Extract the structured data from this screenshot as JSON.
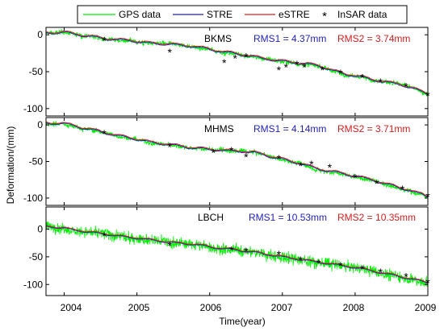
{
  "chart_data": {
    "type": "line",
    "xlabel": "Time(year)",
    "ylabel": "Deformation/(mm)",
    "xlim": [
      2003.75,
      2009.0
    ],
    "xticks": [
      "2004",
      "2005",
      "2006",
      "2007",
      "2008",
      "2009"
    ],
    "legend": {
      "placement": "top",
      "entries": [
        {
          "label": "GPS data",
          "color": "#00ee00",
          "marker": "line"
        },
        {
          "label": "STRE",
          "color": "#1f1fbf",
          "marker": "line"
        },
        {
          "label": "eSTRE",
          "color": "#d62020",
          "marker": "line"
        },
        {
          "label": "InSAR data",
          "color": "#000000",
          "marker": "*"
        }
      ]
    },
    "panels": [
      {
        "station": "BKMS",
        "rms1": "RMS1 = 4.37mm",
        "rms2": "RMS2 = 3.74mm",
        "ylim": [
          -110,
          10
        ],
        "yticks": [
          0,
          -50,
          -100
        ],
        "gps_noise": 4,
        "trend": [
          [
            2003.75,
            2
          ],
          [
            2004.0,
            3
          ],
          [
            2004.3,
            -2
          ],
          [
            2004.6,
            -6
          ],
          [
            2004.9,
            -8
          ],
          [
            2005.2,
            -12
          ],
          [
            2005.5,
            -14
          ],
          [
            2005.8,
            -16
          ],
          [
            2006.0,
            -20
          ],
          [
            2006.3,
            -25
          ],
          [
            2006.6,
            -30
          ],
          [
            2006.9,
            -35
          ],
          [
            2007.2,
            -38
          ],
          [
            2007.5,
            -42
          ],
          [
            2007.8,
            -52
          ],
          [
            2008.1,
            -58
          ],
          [
            2008.4,
            -64
          ],
          [
            2008.7,
            -70
          ],
          [
            2009.0,
            -80
          ]
        ],
        "insar": [
          [
            2004.55,
            -8
          ],
          [
            2005.45,
            -24
          ],
          [
            2006.2,
            -38
          ],
          [
            2006.35,
            -32
          ],
          [
            2006.5,
            -30
          ],
          [
            2006.95,
            -48
          ],
          [
            2007.05,
            -44
          ],
          [
            2007.2,
            -40
          ],
          [
            2007.3,
            -44
          ],
          [
            2007.55,
            -48
          ],
          [
            2007.8,
            -52
          ],
          [
            2008.1,
            -58
          ],
          [
            2008.35,
            -64
          ],
          [
            2008.7,
            -70
          ],
          [
            2009.0,
            -82
          ]
        ]
      },
      {
        "station": "MHMS",
        "rms1": "RMS1 = 4.14mm",
        "rms2": "RMS2 = 3.71mm",
        "ylim": [
          -110,
          10
        ],
        "yticks": [
          0,
          -50,
          -100
        ],
        "gps_noise": 4,
        "trend": [
          [
            2003.75,
            2
          ],
          [
            2004.0,
            2
          ],
          [
            2004.3,
            -5
          ],
          [
            2004.6,
            -12
          ],
          [
            2004.9,
            -18
          ],
          [
            2005.2,
            -24
          ],
          [
            2005.5,
            -28
          ],
          [
            2005.8,
            -32
          ],
          [
            2006.0,
            -34
          ],
          [
            2006.3,
            -36
          ],
          [
            2006.6,
            -38
          ],
          [
            2006.9,
            -45
          ],
          [
            2007.2,
            -52
          ],
          [
            2007.5,
            -60
          ],
          [
            2007.8,
            -66
          ],
          [
            2008.1,
            -72
          ],
          [
            2008.4,
            -80
          ],
          [
            2008.7,
            -88
          ],
          [
            2009.0,
            -98
          ]
        ],
        "insar": [
          [
            2004.55,
            -12
          ],
          [
            2005.45,
            -30
          ],
          [
            2006.05,
            -38
          ],
          [
            2006.3,
            -35
          ],
          [
            2006.5,
            -44
          ],
          [
            2006.95,
            -46
          ],
          [
            2007.25,
            -56
          ],
          [
            2007.4,
            -54
          ],
          [
            2007.65,
            -58
          ],
          [
            2008.0,
            -72
          ],
          [
            2008.3,
            -80
          ],
          [
            2008.65,
            -88
          ],
          [
            2009.0,
            -98
          ]
        ]
      },
      {
        "station": "LBCH",
        "rms1": "RMS1 = 10.53mm",
        "rms2": "RMS2 = 10.35mm",
        "ylim": [
          -120,
          40
        ],
        "yticks": [
          0,
          -50,
          -100
        ],
        "gps_noise": 13,
        "trend": [
          [
            2003.75,
            5
          ],
          [
            2004.0,
            2
          ],
          [
            2004.3,
            -5
          ],
          [
            2004.6,
            -10
          ],
          [
            2004.9,
            -15
          ],
          [
            2005.2,
            -20
          ],
          [
            2005.5,
            -25
          ],
          [
            2005.8,
            -28
          ],
          [
            2006.0,
            -32
          ],
          [
            2006.3,
            -37
          ],
          [
            2006.6,
            -42
          ],
          [
            2006.9,
            -48
          ],
          [
            2007.2,
            -54
          ],
          [
            2007.5,
            -60
          ],
          [
            2007.8,
            -66
          ],
          [
            2008.1,
            -72
          ],
          [
            2008.4,
            -80
          ],
          [
            2008.7,
            -88
          ],
          [
            2009.0,
            -97
          ]
        ],
        "insar": [
          [
            2004.55,
            -12
          ],
          [
            2005.45,
            -30
          ],
          [
            2006.3,
            -38
          ],
          [
            2006.5,
            -40
          ],
          [
            2006.95,
            -46
          ],
          [
            2007.25,
            -56
          ],
          [
            2007.5,
            -62
          ],
          [
            2007.8,
            -66
          ],
          [
            2008.1,
            -72
          ],
          [
            2008.35,
            -78
          ],
          [
            2008.7,
            -86
          ],
          [
            2009.0,
            -97
          ]
        ]
      }
    ]
  }
}
